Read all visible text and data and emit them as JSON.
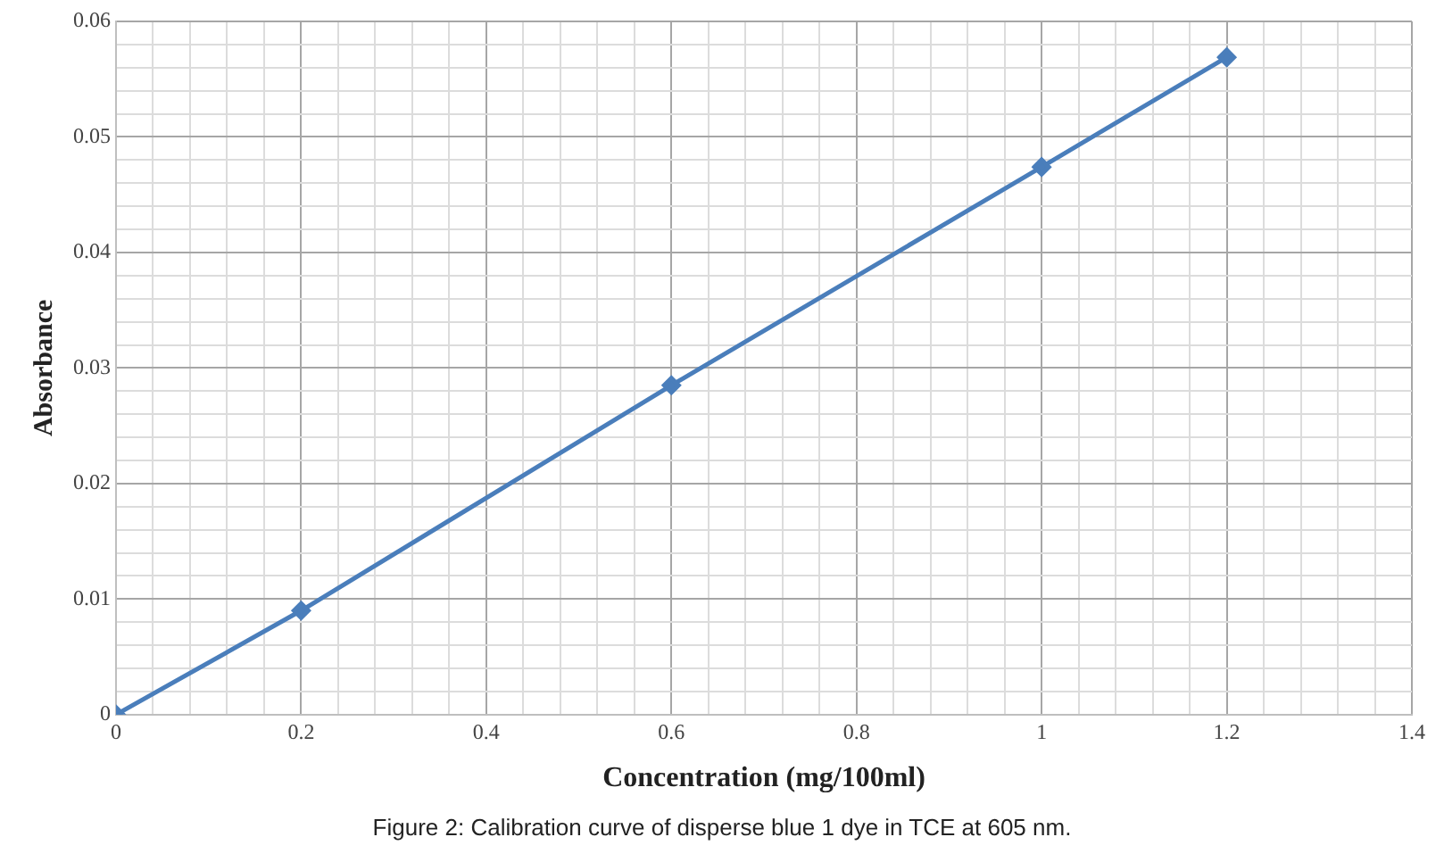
{
  "chart_data": {
    "type": "line",
    "xlabel": "Concentration (mg/100ml)",
    "ylabel": "Absorbance",
    "annotations": [
      "Figure 2: Calibration curve of disperse blue 1 dye in TCE at 605 nm."
    ],
    "x": [
      0,
      0.2,
      0.6,
      1,
      1.2
    ],
    "series": [
      {
        "color": "#4a7ebb",
        "values": [
          0,
          0.009,
          0.0285,
          0.0474,
          0.0569
        ]
      }
    ],
    "xlim": [
      0,
      1.4
    ],
    "ylim": [
      0,
      0.06
    ],
    "xticks": [
      0,
      {
        "value": 0.04,
        "label": null
      },
      {
        "value": 0.08,
        "label": null
      },
      {
        "value": 0.12,
        "label": null
      },
      {
        "value": 0.16,
        "label": null
      },
      {
        "value": 0.2,
        "label": "0.2"
      },
      {
        "value": 0.24,
        "label": null
      },
      {
        "value": 0.28,
        "label": null
      },
      {
        "value": 0.32,
        "label": null
      },
      {
        "value": 0.36,
        "label": null
      },
      {
        "value": 0.4,
        "label": "0.4"
      },
      {
        "value": 0.44,
        "label": null
      },
      {
        "value": 0.48,
        "label": null
      },
      {
        "value": 0.52,
        "label": null
      },
      {
        "value": 0.56,
        "label": null
      },
      {
        "value": 0.6,
        "label": "0.6"
      },
      {
        "value": 0.64,
        "label": null
      },
      {
        "value": 0.68,
        "label": null
      },
      {
        "value": 0.72,
        "label": null
      },
      {
        "value": 0.76,
        "label": null
      },
      {
        "value": 0.8,
        "label": "0.8"
      },
      {
        "value": 0.84,
        "label": null
      },
      {
        "value": 0.88,
        "label": null
      },
      {
        "value": 0.92,
        "label": null
      },
      {
        "value": 0.96,
        "label": null
      },
      1,
      {
        "value": 1.04,
        "label": null
      },
      {
        "value": 1.08,
        "label": null
      },
      {
        "value": 1.12,
        "label": null
      },
      {
        "value": 1.16,
        "label": null
      },
      {
        "value": 1.2,
        "label": "1.2"
      },
      {
        "value": 1.24,
        "label": null
      },
      {
        "value": 1.28,
        "label": null
      },
      {
        "value": 1.32,
        "label": null
      },
      {
        "value": 1.36,
        "label": null
      },
      {
        "value": 1.4,
        "label": "1.4"
      }
    ],
    "yticks": [
      0,
      {
        "value": 0.002,
        "label": null
      },
      {
        "value": 0.004,
        "label": null
      },
      {
        "value": 0.006,
        "label": null
      },
      {
        "value": 0.008,
        "label": null
      },
      {
        "value": 0.01,
        "label": "0.01"
      },
      {
        "value": 0.012,
        "label": null
      },
      {
        "value": 0.014,
        "label": null
      },
      {
        "value": 0.016,
        "label": null
      },
      {
        "value": 0.018,
        "label": null
      },
      {
        "value": 0.02,
        "label": "0.02"
      },
      {
        "value": 0.022,
        "label": null
      },
      {
        "value": 0.024,
        "label": null
      },
      {
        "value": 0.026,
        "label": null
      },
      {
        "value": 0.028,
        "label": null
      },
      {
        "value": 0.03,
        "label": "0.03"
      },
      {
        "value": 0.032,
        "label": null
      },
      {
        "value": 0.034,
        "label": null
      },
      {
        "value": 0.036,
        "label": null
      },
      {
        "value": 0.038,
        "label": null
      },
      {
        "value": 0.04,
        "label": "0.04"
      },
      {
        "value": 0.042,
        "label": null
      },
      {
        "value": 0.044,
        "label": null
      },
      {
        "value": 0.046,
        "label": null
      },
      {
        "value": 0.048,
        "label": null
      },
      {
        "value": 0.05,
        "label": "0.05"
      },
      {
        "value": 0.052,
        "label": null
      },
      {
        "value": 0.054,
        "label": null
      },
      {
        "value": 0.056,
        "label": null
      },
      {
        "value": 0.058,
        "label": null
      },
      {
        "value": 0.06,
        "label": "0.06"
      }
    ],
    "grid": true,
    "legend": false,
    "marker": "diamond",
    "line_style": "solid"
  }
}
